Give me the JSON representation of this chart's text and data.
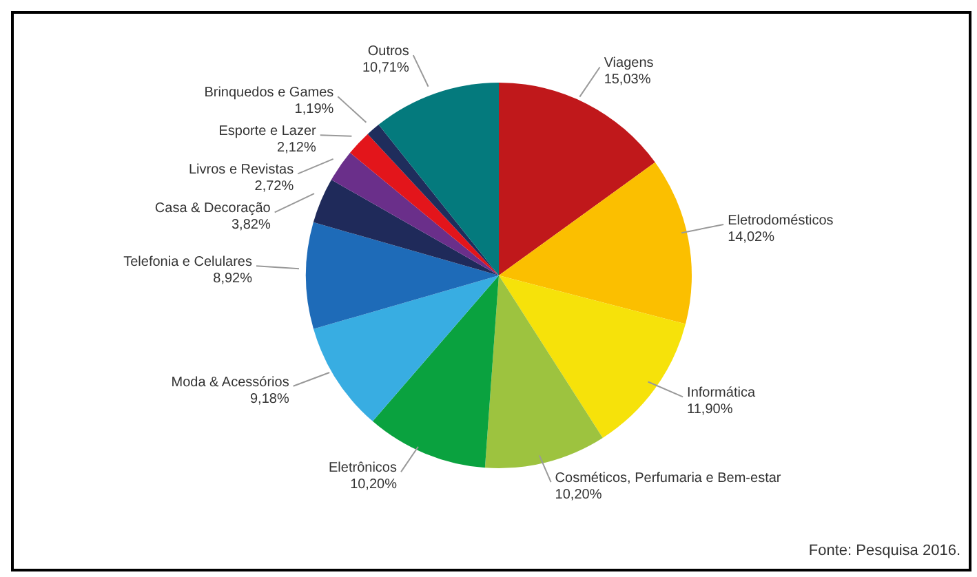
{
  "chart_data": {
    "type": "pie",
    "categories": [
      "Viagens",
      "Eletrodomésticos",
      "Informática",
      "Cosméticos, Perfumaria e Bem-estar",
      "Eletrônicos",
      "Moda & Acessórios",
      "Telefonia e Celulares",
      "Casa & Decoração",
      "Livros e Revistas",
      "Esporte e Lazer",
      "Brinquedos e Games",
      "Outros"
    ],
    "values": [
      15.03,
      14.02,
      11.9,
      10.2,
      10.2,
      9.18,
      8.92,
      3.82,
      2.72,
      2.12,
      1.19,
      10.71
    ],
    "value_labels": [
      "15,03%",
      "14,02%",
      "11,90%",
      "10,20%",
      "10,20%",
      "9,18%",
      "8,92%",
      "3,82%",
      "2,72%",
      "2,12%",
      "1,19%",
      "10,71%"
    ],
    "colors": [
      "#c0181b",
      "#fbbf00",
      "#f6e20a",
      "#9dc33f",
      "#0aa23f",
      "#38ade2",
      "#1e6bb8",
      "#1f2a5a",
      "#6a2f8a",
      "#e3151b",
      "#1f2d5c",
      "#047a7d"
    ],
    "annotations": [
      "Fonte: Pesquisa 2016."
    ]
  }
}
